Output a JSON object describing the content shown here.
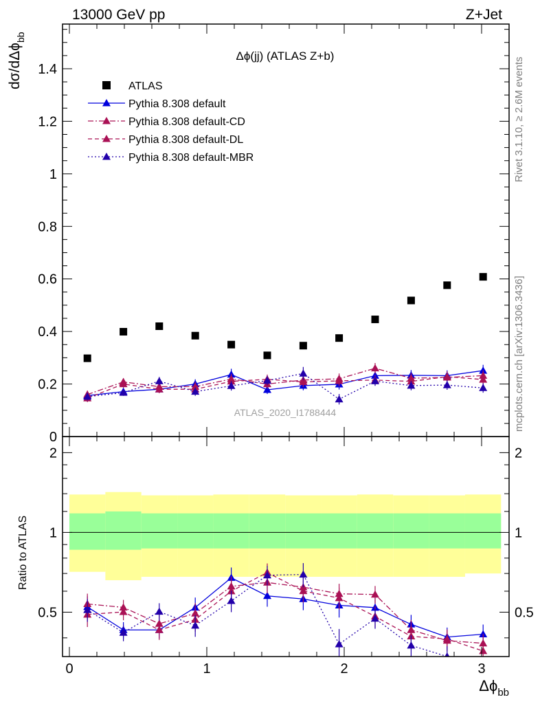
{
  "header": {
    "left": "13000 GeV pp",
    "right": "Z+Jet"
  },
  "side_texts": {
    "rivet": "Rivet 3.1.10, ≥ 2.6M events",
    "mcplots": "mcplots.cern.ch [arXiv:1306.3436]"
  },
  "main_panel": {
    "title": "Δϕ(jj) (ATLAS Z+b)",
    "ylabel_main": "dσ/dΔϕ",
    "ylabel_sub": "bb",
    "watermark": "ATLAS_2020_I1788444",
    "yticks": [
      "0",
      "0.2",
      "0.4",
      "0.6",
      "0.8",
      "1",
      "1.2",
      "1.4"
    ]
  },
  "ratio_panel": {
    "ylabel": "Ratio to ATLAS",
    "yticks": [
      "0.5",
      "1",
      "2"
    ]
  },
  "x_axis": {
    "label_main": "Δϕ",
    "label_sub": "bb",
    "ticks": [
      "0",
      "1",
      "2",
      "3"
    ]
  },
  "legend": {
    "entries": [
      "ATLAS",
      "Pythia 8.308 default",
      "Pythia 8.308 default-CD",
      "Pythia 8.308 default-DL",
      "Pythia 8.308 default-MBR"
    ]
  },
  "chart_data": {
    "type": "scatter",
    "title": "Δϕ(jj) (ATLAS Z+b)",
    "xlabel": "Δϕbb",
    "ylabel": "dσ/dΔϕbb",
    "xlim": [
      -0.05,
      3.2
    ],
    "ylim": [
      0,
      1.57
    ],
    "ratio_ylim": [
      0.34,
      2.3
    ],
    "ratio_ylabel": "Ratio to ATLAS",
    "grid": false,
    "legend_position": "top-left",
    "bin_edges": [
      0.0,
      0.2618,
      0.5236,
      0.7854,
      1.0472,
      1.309,
      1.5708,
      1.8326,
      2.0944,
      2.3562,
      2.618,
      2.8798,
      3.1416
    ],
    "x": [
      0.131,
      0.393,
      0.654,
      0.916,
      1.178,
      1.44,
      1.702,
      1.963,
      2.225,
      2.487,
      2.749,
      3.011
    ],
    "data": {
      "name": "ATLAS",
      "values": [
        0.298,
        0.399,
        0.42,
        0.384,
        0.35,
        0.309,
        0.346,
        0.375,
        0.446,
        0.518,
        0.576,
        0.608
      ],
      "band_inner_lo": [
        0.86,
        0.86,
        0.87,
        0.87,
        0.87,
        0.87,
        0.87,
        0.87,
        0.87,
        0.87,
        0.87,
        0.87
      ],
      "band_inner_hi": [
        1.18,
        1.2,
        1.18,
        1.18,
        1.18,
        1.18,
        1.18,
        1.18,
        1.18,
        1.18,
        1.18,
        1.18
      ],
      "band_outer_lo": [
        0.71,
        0.66,
        0.68,
        0.68,
        0.68,
        0.68,
        0.68,
        0.68,
        0.68,
        0.68,
        0.68,
        0.7
      ],
      "band_outer_hi": [
        1.39,
        1.42,
        1.38,
        1.38,
        1.39,
        1.39,
        1.38,
        1.38,
        1.39,
        1.38,
        1.38,
        1.39
      ]
    },
    "series": [
      {
        "name": "Pythia 8.308 default",
        "color": "#0000dd",
        "dash": "",
        "values": [
          0.156,
          0.171,
          0.18,
          0.2,
          0.236,
          0.178,
          0.194,
          0.199,
          0.232,
          0.233,
          0.232,
          0.251
        ],
        "errors": [
          0.015,
          0.012,
          0.013,
          0.018,
          0.022,
          0.016,
          0.018,
          0.02,
          0.02,
          0.02,
          0.02,
          0.022
        ]
      },
      {
        "name": "Pythia 8.308 default-CD",
        "color": "#aa1155",
        "dash": "8,3,2,3",
        "values": [
          0.16,
          0.208,
          0.19,
          0.19,
          0.219,
          0.2,
          0.215,
          0.22,
          0.26,
          0.222,
          0.225,
          0.232
        ],
        "errors": [
          0.015,
          0.014,
          0.015,
          0.018,
          0.02,
          0.018,
          0.02,
          0.02,
          0.02,
          0.02,
          0.02,
          0.02
        ]
      },
      {
        "name": "Pythia 8.308 default-DL",
        "color": "#aa1155",
        "dash": "6,4",
        "values": [
          0.146,
          0.2,
          0.18,
          0.18,
          0.21,
          0.218,
          0.208,
          0.212,
          0.215,
          0.21,
          0.228,
          0.217
        ],
        "errors": [
          0.015,
          0.014,
          0.015,
          0.018,
          0.02,
          0.018,
          0.02,
          0.02,
          0.02,
          0.02,
          0.02,
          0.02
        ]
      },
      {
        "name": "Pythia 8.308 default-MBR",
        "color": "#2200aa",
        "dash": "2,3",
        "values": [
          0.152,
          0.167,
          0.211,
          0.171,
          0.193,
          0.213,
          0.24,
          0.142,
          0.211,
          0.194,
          0.196,
          0.185
        ],
        "errors": [
          0.015,
          0.012,
          0.016,
          0.016,
          0.018,
          0.018,
          0.025,
          0.02,
          0.018,
          0.018,
          0.018,
          0.018
        ]
      }
    ]
  }
}
